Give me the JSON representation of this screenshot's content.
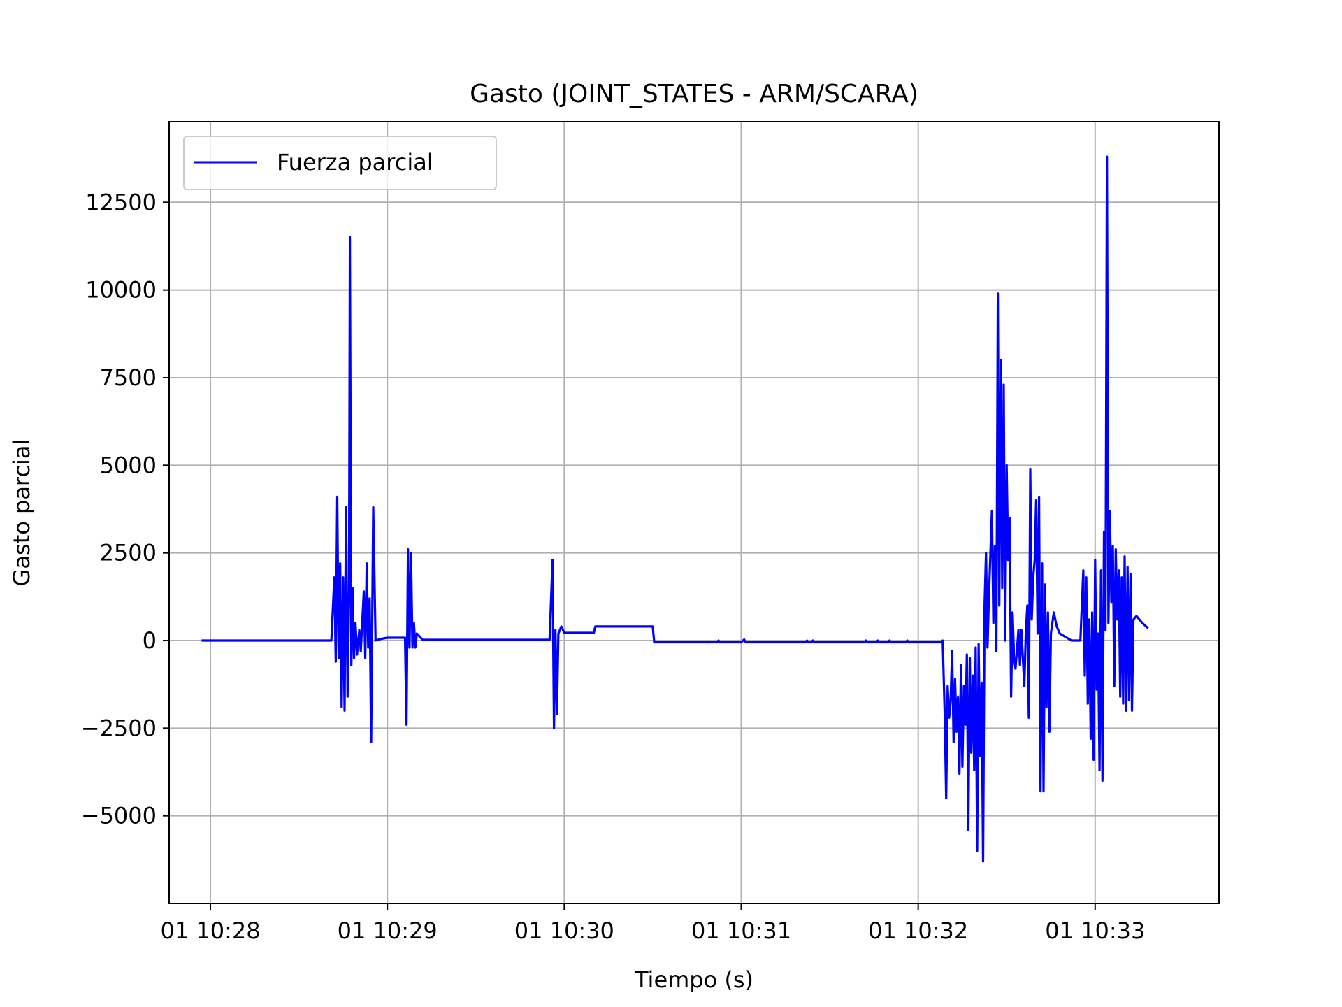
{
  "chart_data": {
    "type": "line",
    "title": "Gasto (JOINT_STATES - ARM/SCARA)",
    "xlabel": "Tiempo (s)",
    "ylabel": "Gasto parcial",
    "x_unit": "time",
    "xlim": [
      "10:27:46",
      "10:33:42"
    ],
    "ylim": [
      -7500,
      14800
    ],
    "x_ticks": [
      {
        "t": "10:28:00",
        "label": "01 10:28"
      },
      {
        "t": "10:29:00",
        "label": "01 10:29"
      },
      {
        "t": "10:30:00",
        "label": "01 10:30"
      },
      {
        "t": "10:31:00",
        "label": "01 10:31"
      },
      {
        "t": "10:32:00",
        "label": "01 10:32"
      },
      {
        "t": "10:33:00",
        "label": "01 10:33"
      }
    ],
    "y_ticks": [
      {
        "v": 12500,
        "label": "12500"
      },
      {
        "v": 10000,
        "label": "10000"
      },
      {
        "v": 7500,
        "label": "7500"
      },
      {
        "v": 5000,
        "label": "5000"
      },
      {
        "v": 2500,
        "label": "2500"
      },
      {
        "v": 0,
        "label": "0"
      },
      {
        "v": -2500,
        "label": "−2500"
      },
      {
        "v": -5000,
        "label": "−5000"
      }
    ],
    "grid": true,
    "legend": {
      "position": "top-left",
      "entries": [
        "Fuerza parcial"
      ]
    },
    "series": [
      {
        "name": "Fuerza parcial",
        "color": "#0000ff",
        "points": [
          [
            "10:27:57",
            0
          ],
          [
            "10:28:20",
            0
          ],
          [
            "10:28:41",
            0
          ],
          [
            "10:28:42",
            1800
          ],
          [
            "10:28:42.5",
            -600
          ],
          [
            "10:28:43",
            4100
          ],
          [
            "10:28:43.5",
            -500
          ],
          [
            "10:28:44",
            2200
          ],
          [
            "10:28:44.5",
            -1900
          ],
          [
            "10:28:45",
            1800
          ],
          [
            "10:28:45.5",
            -2000
          ],
          [
            "10:28:46",
            3800
          ],
          [
            "10:28:46.5",
            -1600
          ],
          [
            "10:28:47",
            1400
          ],
          [
            "10:28:47.3",
            11500
          ],
          [
            "10:28:47.8",
            -700
          ],
          [
            "10:28:48.2",
            1500
          ],
          [
            "10:28:48.7",
            -500
          ],
          [
            "10:28:49.2",
            500
          ],
          [
            "10:28:49.7",
            -400
          ],
          [
            "10:28:50.5",
            300
          ],
          [
            "10:28:51",
            -300
          ],
          [
            "10:28:52",
            1400
          ],
          [
            "10:28:52.5",
            -500
          ],
          [
            "10:28:53",
            2200
          ],
          [
            "10:28:53.5",
            -200
          ],
          [
            "10:28:54",
            1200
          ],
          [
            "10:28:54.5",
            -2900
          ],
          [
            "10:28:55.2",
            3800
          ],
          [
            "10:28:55.6",
            2000
          ],
          [
            "10:28:56",
            0
          ],
          [
            "10:28:58",
            50
          ],
          [
            "10:29:00",
            80
          ],
          [
            "10:29:06",
            80
          ],
          [
            "10:29:06.5",
            -2400
          ],
          [
            "10:29:07",
            2600
          ],
          [
            "10:29:07.5",
            -200
          ],
          [
            "10:29:08",
            2500
          ],
          [
            "10:29:08.5",
            -200
          ],
          [
            "10:29:09",
            500
          ],
          [
            "10:29:09.5",
            -200
          ],
          [
            "10:29:10",
            200
          ],
          [
            "10:29:12",
            20
          ],
          [
            "10:29:20",
            20
          ],
          [
            "10:29:40",
            20
          ],
          [
            "10:29:55",
            20
          ],
          [
            "10:29:56",
            2300
          ],
          [
            "10:29:56.5",
            -2500
          ],
          [
            "10:29:57",
            300
          ],
          [
            "10:29:57.5",
            -2100
          ],
          [
            "10:29:58",
            200
          ],
          [
            "10:29:59",
            400
          ],
          [
            "10:30:00",
            220
          ],
          [
            "10:30:10",
            220
          ],
          [
            "10:30:10.5",
            400
          ],
          [
            "10:30:30",
            400
          ],
          [
            "10:30:30.5",
            -50
          ],
          [
            "10:30:52",
            -50
          ],
          [
            "10:30:52.3",
            0
          ],
          [
            "10:30:52.6",
            -50
          ],
          [
            "10:31:00",
            -50
          ],
          [
            "10:31:01",
            30
          ],
          [
            "10:31:01.5",
            -50
          ],
          [
            "10:31:22",
            -50
          ],
          [
            "10:31:22.3",
            0
          ],
          [
            "10:31:22.6",
            -50
          ],
          [
            "10:31:24",
            -50
          ],
          [
            "10:31:24.3",
            0
          ],
          [
            "10:31:24.6",
            -50
          ],
          [
            "10:31:36",
            -50
          ],
          [
            "10:31:42",
            -50
          ],
          [
            "10:31:42.3",
            0
          ],
          [
            "10:31:42.6",
            -50
          ],
          [
            "10:31:46",
            -50
          ],
          [
            "10:31:46.3",
            0
          ],
          [
            "10:31:46.6",
            -50
          ],
          [
            "10:31:50",
            -50
          ],
          [
            "10:31:50.3",
            0
          ],
          [
            "10:31:50.6",
            -50
          ],
          [
            "10:31:56",
            -50
          ],
          [
            "10:31:56.3",
            0
          ],
          [
            "10:31:56.6",
            -50
          ],
          [
            "10:32:05",
            -50
          ],
          [
            "10:32:08",
            -50
          ],
          [
            "10:32:08.3",
            0
          ],
          [
            "10:32:09",
            -2100
          ],
          [
            "10:32:09.5",
            -4500
          ],
          [
            "10:32:10",
            -1300
          ],
          [
            "10:32:10.5",
            -2200
          ],
          [
            "10:32:11",
            -1700
          ],
          [
            "10:32:11.5",
            -300
          ],
          [
            "10:32:12",
            -2900
          ],
          [
            "10:32:12.5",
            -1100
          ],
          [
            "10:32:13",
            -2600
          ],
          [
            "10:32:13.5",
            -1600
          ],
          [
            "10:32:14",
            -3800
          ],
          [
            "10:32:14.5",
            -700
          ],
          [
            "10:32:15",
            -3600
          ],
          [
            "10:32:15.5",
            -1300
          ],
          [
            "10:32:16",
            -2400
          ],
          [
            "10:32:16.5",
            -400
          ],
          [
            "10:32:17",
            -5400
          ],
          [
            "10:32:17.5",
            -500
          ],
          [
            "10:32:18",
            -3200
          ],
          [
            "10:32:18.5",
            -1000
          ],
          [
            "10:32:19",
            -3700
          ],
          [
            "10:32:19.5",
            -200
          ],
          [
            "10:32:20",
            -6000
          ],
          [
            "10:32:20.5",
            -100
          ],
          [
            "10:32:21",
            -3300
          ],
          [
            "10:32:21.5",
            -1200
          ],
          [
            "10:32:22",
            -6300
          ],
          [
            "10:32:22.5",
            1000
          ],
          [
            "10:32:23",
            2500
          ],
          [
            "10:32:23.5",
            -200
          ],
          [
            "10:32:24",
            1300
          ],
          [
            "10:32:25",
            3700
          ],
          [
            "10:32:25.5",
            500
          ],
          [
            "10:32:26",
            2700
          ],
          [
            "10:32:26.5",
            -300
          ],
          [
            "10:32:27",
            9900
          ],
          [
            "10:32:27.5",
            1000
          ],
          [
            "10:32:28",
            8000
          ],
          [
            "10:32:28.5",
            1500
          ],
          [
            "10:32:29",
            7300
          ],
          [
            "10:32:29.5",
            0
          ],
          [
            "10:32:30",
            5000
          ],
          [
            "10:32:30.5",
            2300
          ],
          [
            "10:32:31",
            3500
          ],
          [
            "10:32:31.5",
            -1600
          ],
          [
            "10:32:32",
            800
          ],
          [
            "10:32:32.5",
            -500
          ],
          [
            "10:32:33",
            -800
          ],
          [
            "10:32:34",
            300
          ],
          [
            "10:32:34.5",
            -700
          ],
          [
            "10:32:35",
            300
          ],
          [
            "10:32:36",
            -1300
          ],
          [
            "10:32:36.5",
            200
          ],
          [
            "10:32:37",
            1000
          ],
          [
            "10:32:37.5",
            -2200
          ],
          [
            "10:32:38",
            4900
          ],
          [
            "10:32:38.5",
            600
          ],
          [
            "10:32:39",
            1800
          ],
          [
            "10:32:39.5",
            2300
          ],
          [
            "10:32:40",
            4000
          ],
          [
            "10:32:40.5",
            200
          ],
          [
            "10:32:41",
            4100
          ],
          [
            "10:32:41.5",
            -4300
          ],
          [
            "10:32:42",
            2200
          ],
          [
            "10:32:42.5",
            -4300
          ],
          [
            "10:32:43",
            1600
          ],
          [
            "10:32:43.5",
            -1900
          ],
          [
            "10:32:44",
            800
          ],
          [
            "10:32:44.5",
            -2600
          ],
          [
            "10:32:45",
            200
          ],
          [
            "10:32:46",
            800
          ],
          [
            "10:32:47",
            400
          ],
          [
            "10:32:48",
            200
          ],
          [
            "10:32:50",
            100
          ],
          [
            "10:32:52",
            0
          ],
          [
            "10:32:55",
            0
          ],
          [
            "10:32:56",
            2000
          ],
          [
            "10:32:56.5",
            -1000
          ],
          [
            "10:32:57",
            1800
          ],
          [
            "10:32:57.5",
            -1800
          ],
          [
            "10:32:58",
            600
          ],
          [
            "10:32:58.5",
            -2800
          ],
          [
            "10:32:59",
            800
          ],
          [
            "10:32:59.5",
            -3400
          ],
          [
            "10:33:00",
            2300
          ],
          [
            "10:33:00.5",
            -1400
          ],
          [
            "10:33:01",
            200
          ],
          [
            "10:33:01.5",
            -3700
          ],
          [
            "10:33:02",
            2000
          ],
          [
            "10:33:02.5",
            -4000
          ],
          [
            "10:33:03",
            3100
          ],
          [
            "10:33:03.5",
            300
          ],
          [
            "10:33:04",
            13800
          ],
          [
            "10:33:04.5",
            500
          ],
          [
            "10:33:05",
            3700
          ],
          [
            "10:33:05.5",
            1100
          ],
          [
            "10:33:06",
            2700
          ],
          [
            "10:33:06.5",
            -1300
          ],
          [
            "10:33:07",
            2600
          ],
          [
            "10:33:07.5",
            600
          ],
          [
            "10:33:08",
            2000
          ],
          [
            "10:33:08.5",
            -1600
          ],
          [
            "10:33:09",
            1800
          ],
          [
            "10:33:09.5",
            -1800
          ],
          [
            "10:33:10",
            2400
          ],
          [
            "10:33:10.5",
            -2000
          ],
          [
            "10:33:11",
            2100
          ],
          [
            "10:33:11.5",
            -1700
          ],
          [
            "10:33:12",
            1900
          ],
          [
            "10:33:12.5",
            -2000
          ],
          [
            "10:33:13",
            600
          ],
          [
            "10:33:14",
            700
          ],
          [
            "10:33:16",
            500
          ],
          [
            "10:33:18",
            350
          ]
        ]
      }
    ]
  }
}
